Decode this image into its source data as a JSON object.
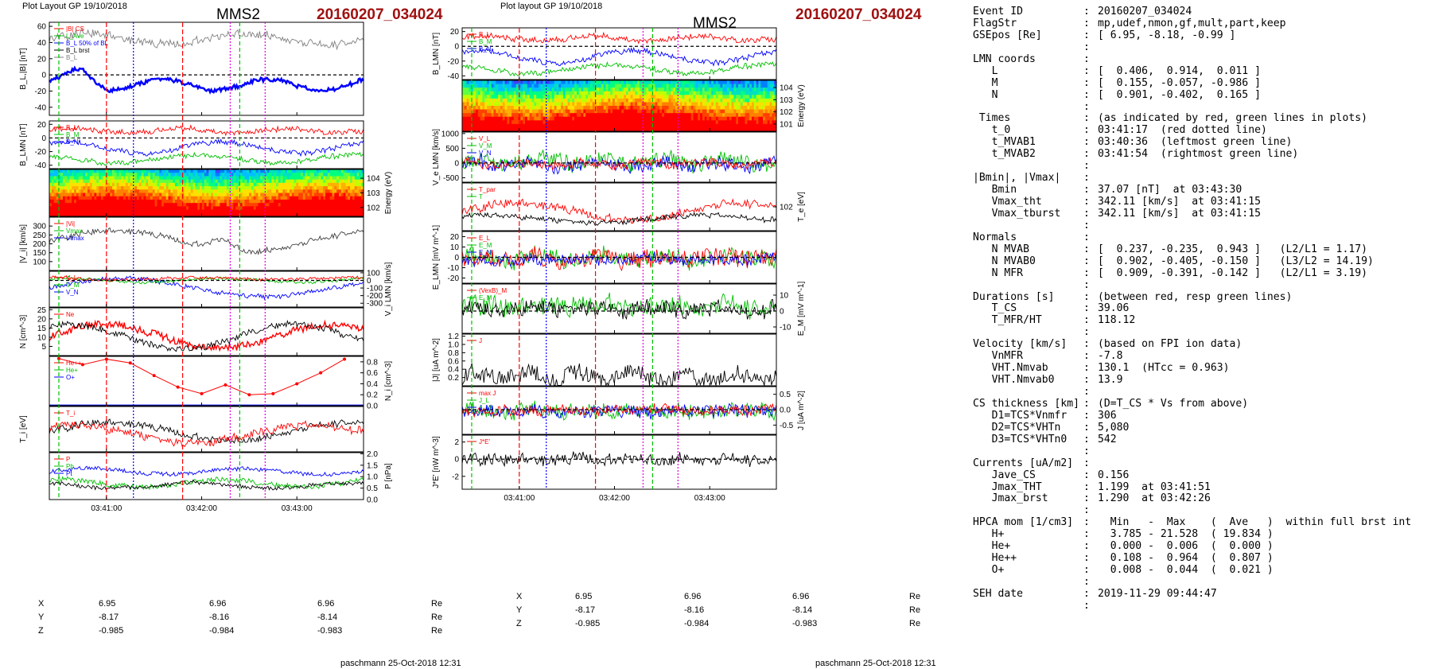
{
  "header_left": "Plot Layout GP 19/10/2018",
  "header_mid": "Plot layout GP 19/10/2018",
  "spacecraft": "MMS2",
  "event_title": "20160207_034024",
  "footer": "paschmann 25-Oct-2018 12:31",
  "time_ticks": [
    "03:41:00",
    "03:42:00",
    "03:43:00"
  ],
  "coords": [
    {
      "name": "X",
      "values": [
        "6.95",
        "6.96",
        "6.96"
      ],
      "unit": "Re"
    },
    {
      "name": "Y",
      "values": [
        "-8.17",
        "-8.16",
        "-8.14"
      ],
      "unit": "Re"
    },
    {
      "name": "Z",
      "values": [
        "-0.985",
        "-0.984",
        "-0.983"
      ],
      "unit": "Re"
    }
  ],
  "colors": {
    "event": "#a01010",
    "red": "#ff0000",
    "green": "#00c000",
    "blue": "#0000ff",
    "magenta": "#e000e0",
    "gray": "#808080"
  },
  "chart_data": [
    {
      "type": "line",
      "title": "MMS2 20160207_034024 (left column)",
      "x_range": [
        "03:40:24",
        "03:43:42"
      ],
      "panels": [
        {
          "id": "BL",
          "ylabel": "B_L,|B| [nT]",
          "ylim": [
            -50,
            65
          ],
          "ticks": [
            "60",
            "40",
            "20",
            "0",
            "-20",
            "-40"
          ],
          "legend": [
            "|B| CS",
            "L_Ave",
            "B_L 50% of BL",
            "B_L brst",
            "B_L"
          ]
        },
        {
          "id": "BLMN",
          "ylabel": "B_LMN [nT]",
          "ylim": [
            -45,
            25
          ],
          "ticks": [
            "20",
            "0",
            "-20",
            "-40"
          ],
          "legend": [
            "B_L",
            "B_M",
            "B_N"
          ]
        },
        {
          "id": "spec_i",
          "type": "heatmap",
          "ylabel": "Energy (eV)",
          "ticks": [
            "10^4",
            "10^3",
            "10^2"
          ]
        },
        {
          "id": "Vi",
          "ylabel": "|V_i| [km/s]",
          "ylim": [
            50,
            350
          ],
          "ticks": [
            "300",
            "250",
            "200",
            "150",
            "100"
          ],
          "legend": [
            "|Vi|",
            "Vmax",
            "Vtmax"
          ]
        },
        {
          "id": "ViLMN",
          "ylabel": "V_i LMN [km/s]",
          "ylim": [
            -350,
            120
          ],
          "ticks": [
            "100",
            "0",
            "-100",
            "-200",
            "-300"
          ],
          "legend": [
            "V_L",
            "V_M",
            "V_N"
          ]
        },
        {
          "id": "N",
          "ylabel": "N [cm^-3]",
          "ylim": [
            0,
            26
          ],
          "ticks": [
            "25",
            "20",
            "15",
            "10",
            "5"
          ],
          "legend": [
            "Ne"
          ]
        },
        {
          "id": "Nminor",
          "ylabel": "N_i [cm^-3]",
          "ylim": [
            0,
            0.9
          ],
          "ticks": [
            "0.8",
            "0.6",
            "0.4",
            "0.2",
            "0.0"
          ],
          "legend": [
            "He++",
            "He+",
            "O+"
          ],
          "series": [
            {
              "name": "He++",
              "x": [
                "03:40:30",
                "03:40:45",
                "03:41:00",
                "03:41:15",
                "03:41:30",
                "03:41:45",
                "03:42:00",
                "03:42:15",
                "03:42:30",
                "03:42:45",
                "03:43:00",
                "03:43:15",
                "03:43:30"
              ],
              "values": [
                0.86,
                0.75,
                0.85,
                0.78,
                0.55,
                0.34,
                0.22,
                0.38,
                0.2,
                0.22,
                0.4,
                0.6,
                0.85
              ]
            }
          ]
        },
        {
          "id": "Ti",
          "ylabel": "T_i [eV]",
          "ticks": [],
          "legend": [
            "T_i"
          ]
        },
        {
          "id": "P",
          "ylabel": "P [nPa]",
          "ylim": [
            0,
            2.05
          ],
          "ticks": [
            "2.0",
            "1.5",
            "1.0",
            "0.5",
            "0.0"
          ],
          "legend": [
            "P",
            "Pb",
            "Pt"
          ]
        }
      ]
    },
    {
      "type": "line",
      "title": "MMS2 20160207_034024 (middle column)",
      "x_range": [
        "03:40:24",
        "03:43:42"
      ],
      "panels": [
        {
          "id": "BLMN",
          "ylabel": "B_LMN [nT]",
          "ylim": [
            -45,
            25
          ],
          "ticks": [
            "20",
            "0",
            "-20",
            "-40"
          ],
          "legend": [
            "B_L",
            "B_M",
            "B_N"
          ]
        },
        {
          "id": "spec_e",
          "type": "heatmap",
          "ylabel": "Energy (eV)",
          "ticks": [
            "10^4",
            "10^3",
            "10^2",
            "10^1"
          ]
        },
        {
          "id": "VeLMN",
          "ylabel": "V_e LMN [km/s]",
          "ylim": [
            -650,
            1050
          ],
          "ticks": [
            "1000",
            "500",
            "0",
            "-500"
          ],
          "legend": [
            "V_L",
            "V_M",
            "V_N"
          ]
        },
        {
          "id": "Te",
          "ylabel": "T_e [eV]",
          "ticks": [
            "10^2"
          ],
          "legend": [
            "T_par",
            "T"
          ]
        },
        {
          "id": "ELMN",
          "ylabel": "E_LMN [mV m^-1]",
          "ylim": [
            -25,
            25
          ],
          "ticks": [
            "20",
            "10",
            "0",
            "-10",
            "-20"
          ],
          "legend": [
            "E_L",
            "E_M",
            "E_N"
          ]
        },
        {
          "id": "EM",
          "ylabel": "E_M [mV m^-1]",
          "ylim": [
            -14,
            17
          ],
          "ticks": [
            "10",
            "0",
            "-10"
          ],
          "legend": [
            "(VexB)_M",
            "E_M"
          ]
        },
        {
          "id": "J",
          "ylabel": "|J| [uA m^-2]",
          "ylim": [
            0,
            1.25
          ],
          "ticks": [
            "1.2",
            "1.0",
            "0.8",
            "0.6",
            "0.4",
            "0.2"
          ],
          "legend": [
            "J"
          ]
        },
        {
          "id": "JLMN",
          "ylabel": "J [uA m^-2]",
          "ylim": [
            -0.8,
            0.75
          ],
          "ticks": [
            "0.5",
            "0.0",
            "-0.5"
          ],
          "legend": [
            "max J",
            "J_L",
            "J_M"
          ]
        },
        {
          "id": "JE",
          "ylabel": "J*E' [nW m^-3]",
          "ylim": [
            -3.5,
            2.8
          ],
          "ticks": [
            "2",
            "0",
            "-2"
          ],
          "legend": [
            "J*E'"
          ]
        }
      ]
    }
  ],
  "summary": [
    {
      "k": "Event ID",
      "v": "20160207_034024"
    },
    {
      "k": "FlagStr",
      "v": "mp,udef,nmon,gf,mult,part,keep"
    },
    {
      "k": "GSEpos [Re]",
      "v": "[ 6.95, -8.18, -0.99 ]"
    },
    {
      "k": "",
      "v": ""
    },
    {
      "k": "LMN coords",
      "v": ""
    },
    {
      "k": "   L",
      "v": "[  0.406,  0.914,  0.011 ]"
    },
    {
      "k": "   M",
      "v": "[  0.155, -0.057, -0.986 ]"
    },
    {
      "k": "   N",
      "v": "[  0.901, -0.402,  0.165 ]"
    },
    {
      "k": "",
      "v": ""
    },
    {
      "k": " Times",
      "v": "(as indicated by red, green lines in plots)"
    },
    {
      "k": "   t_0",
      "v": "03:41:17  (red dotted line)"
    },
    {
      "k": "   t_MVAB1",
      "v": "03:40:36  (leftmost green line)"
    },
    {
      "k": "   t_MVAB2",
      "v": "03:41:54  (rightmost green line)"
    },
    {
      "k": "",
      "v": ""
    },
    {
      "k": "|Bmin|, |Vmax|",
      "v": ""
    },
    {
      "k": "   Bmin",
      "v": "37.07 [nT]  at 03:43:30"
    },
    {
      "k": "   Vmax_tht",
      "v": "342.11 [km/s]  at 03:41:15"
    },
    {
      "k": "   Vmax_tburst",
      "v": "342.11 [km/s]  at 03:41:15"
    },
    {
      "k": "",
      "v": ""
    },
    {
      "k": "Normals",
      "v": ""
    },
    {
      "k": "   N MVAB",
      "v": "[  0.237, -0.235,  0.943 ]   (L2/L1 = 1.17)"
    },
    {
      "k": "   N MVAB0",
      "v": "[  0.902, -0.405, -0.150 ]   (L3/L2 = 14.19)"
    },
    {
      "k": "   N MFR",
      "v": "[  0.909, -0.391, -0.142 ]   (L2/L1 = 3.19)"
    },
    {
      "k": "",
      "v": ""
    },
    {
      "k": "Durations [s]",
      "v": "(between red, resp green lines)"
    },
    {
      "k": "   T_CS",
      "v": "39.06"
    },
    {
      "k": "   T_MFR/HT",
      "v": "118.12"
    },
    {
      "k": "",
      "v": ""
    },
    {
      "k": "Velocity [km/s]",
      "v": "(based on FPI ion data)"
    },
    {
      "k": "   VnMFR",
      "v": "-7.8"
    },
    {
      "k": "   VHT.Nmvab",
      "v": "130.1  (HTcc = 0.963)"
    },
    {
      "k": "   VHT.Nmvab0",
      "v": "13.9"
    },
    {
      "k": "",
      "v": ""
    },
    {
      "k": "CS thickness [km]",
      "v": "(D=T_CS * Vs from above)"
    },
    {
      "k": "   D1=TCS*Vnmfr",
      "v": "306"
    },
    {
      "k": "   D2=TCS*VHTn",
      "v": "5,080"
    },
    {
      "k": "   D3=TCS*VHTn0",
      "v": "542"
    },
    {
      "k": "",
      "v": ""
    },
    {
      "k": "Currents [uA/m2]",
      "v": ""
    },
    {
      "k": "   Jave_CS",
      "v": "0.156"
    },
    {
      "k": "   Jmax_THT",
      "v": "1.199  at 03:41:51"
    },
    {
      "k": "   Jmax_brst",
      "v": "1.290  at 03:42:26"
    },
    {
      "k": "",
      "v": ""
    },
    {
      "k": "HPCA mom [1/cm3]",
      "v": "  Min   -  Max    (  Ave   )  within full brst int"
    },
    {
      "k": "   H+",
      "v": "  3.785 - 21.528  ( 19.834 )"
    },
    {
      "k": "   He+",
      "v": "  0.000 -  0.006  (  0.000 )"
    },
    {
      "k": "   He++",
      "v": "  0.108 -  0.964  (  0.807 )"
    },
    {
      "k": "   O+",
      "v": "  0.008 -  0.044  (  0.021 )"
    },
    {
      "k": "",
      "v": ""
    },
    {
      "k": "SEH date",
      "v": "2019-11-29 09:44:47"
    },
    {
      "k": "",
      "v": ""
    }
  ]
}
